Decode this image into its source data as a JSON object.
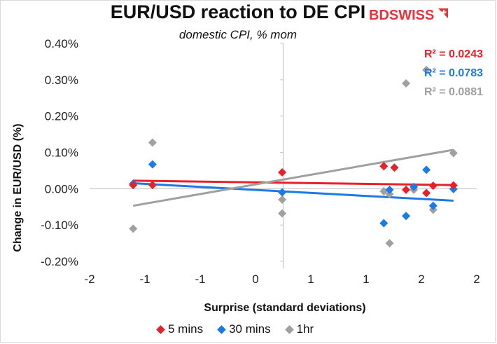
{
  "chart_data": {
    "type": "scatter",
    "title": "EUR/USD reaction to DE CPI",
    "subtitle": "domestic CPI, % mom",
    "xlabel": "Surprise (standard deviations)",
    "ylabel": "Change in EUR/USD  (%)",
    "xlim": [
      -2,
      2
    ],
    "ylim": [
      -0.2,
      0.4
    ],
    "x_ticks": [
      "-2",
      "-1",
      "-1",
      "0",
      "1",
      "1",
      "2",
      "2"
    ],
    "y_ticks": [
      "0.40%",
      "0.30%",
      "0.20%",
      "0.10%",
      "0.00%",
      "-0.10%",
      "-0.20%"
    ],
    "grid": false,
    "legend_position": "bottom",
    "series": [
      {
        "name": "5 mins",
        "color": "#e8202a",
        "marker": "diamond",
        "x": [
          -1.55,
          -1.35,
          -0.01,
          1.04,
          1.15,
          1.27,
          1.48,
          1.55,
          1.76
        ],
        "y": [
          0.01,
          0.01,
          0.045,
          0.062,
          0.058,
          -0.003,
          -0.012,
          0.008,
          0.009
        ],
        "trend": {
          "x": [
            -1.55,
            1.76
          ],
          "y": [
            0.022,
            0.01
          ]
        },
        "r2_label": "R² = 0.0243"
      },
      {
        "name": "30 mins",
        "color": "#1a7ae8",
        "marker": "diamond",
        "x": [
          -1.55,
          -1.35,
          -0.01,
          1.04,
          1.1,
          1.27,
          1.35,
          1.48,
          1.55,
          1.76
        ],
        "y": [
          0.014,
          0.067,
          -0.01,
          -0.095,
          -0.003,
          -0.075,
          0.005,
          0.052,
          -0.047,
          -0.001
        ],
        "trend": {
          "x": [
            -1.55,
            1.76
          ],
          "y": [
            0.015,
            -0.033
          ]
        },
        "r2_label": "R² = 0.0783"
      },
      {
        "name": "1hr",
        "color": "#a0a0a0",
        "marker": "diamond",
        "x": [
          -1.55,
          -1.35,
          -0.01,
          -0.01,
          1.04,
          1.1,
          1.1,
          1.27,
          1.35,
          1.48,
          1.55,
          1.76
        ],
        "y": [
          -0.11,
          0.127,
          -0.068,
          -0.03,
          -0.007,
          -0.015,
          -0.15,
          0.29,
          -0.003,
          0.327,
          -0.058,
          0.098
        ],
        "trend": {
          "x": [
            -1.55,
            1.76
          ],
          "y": [
            -0.047,
            0.107
          ]
        },
        "r2_label": "R² = 0.0881"
      }
    ]
  },
  "logo": {
    "text_bd": "BD",
    "text_swiss": "SWISS"
  }
}
